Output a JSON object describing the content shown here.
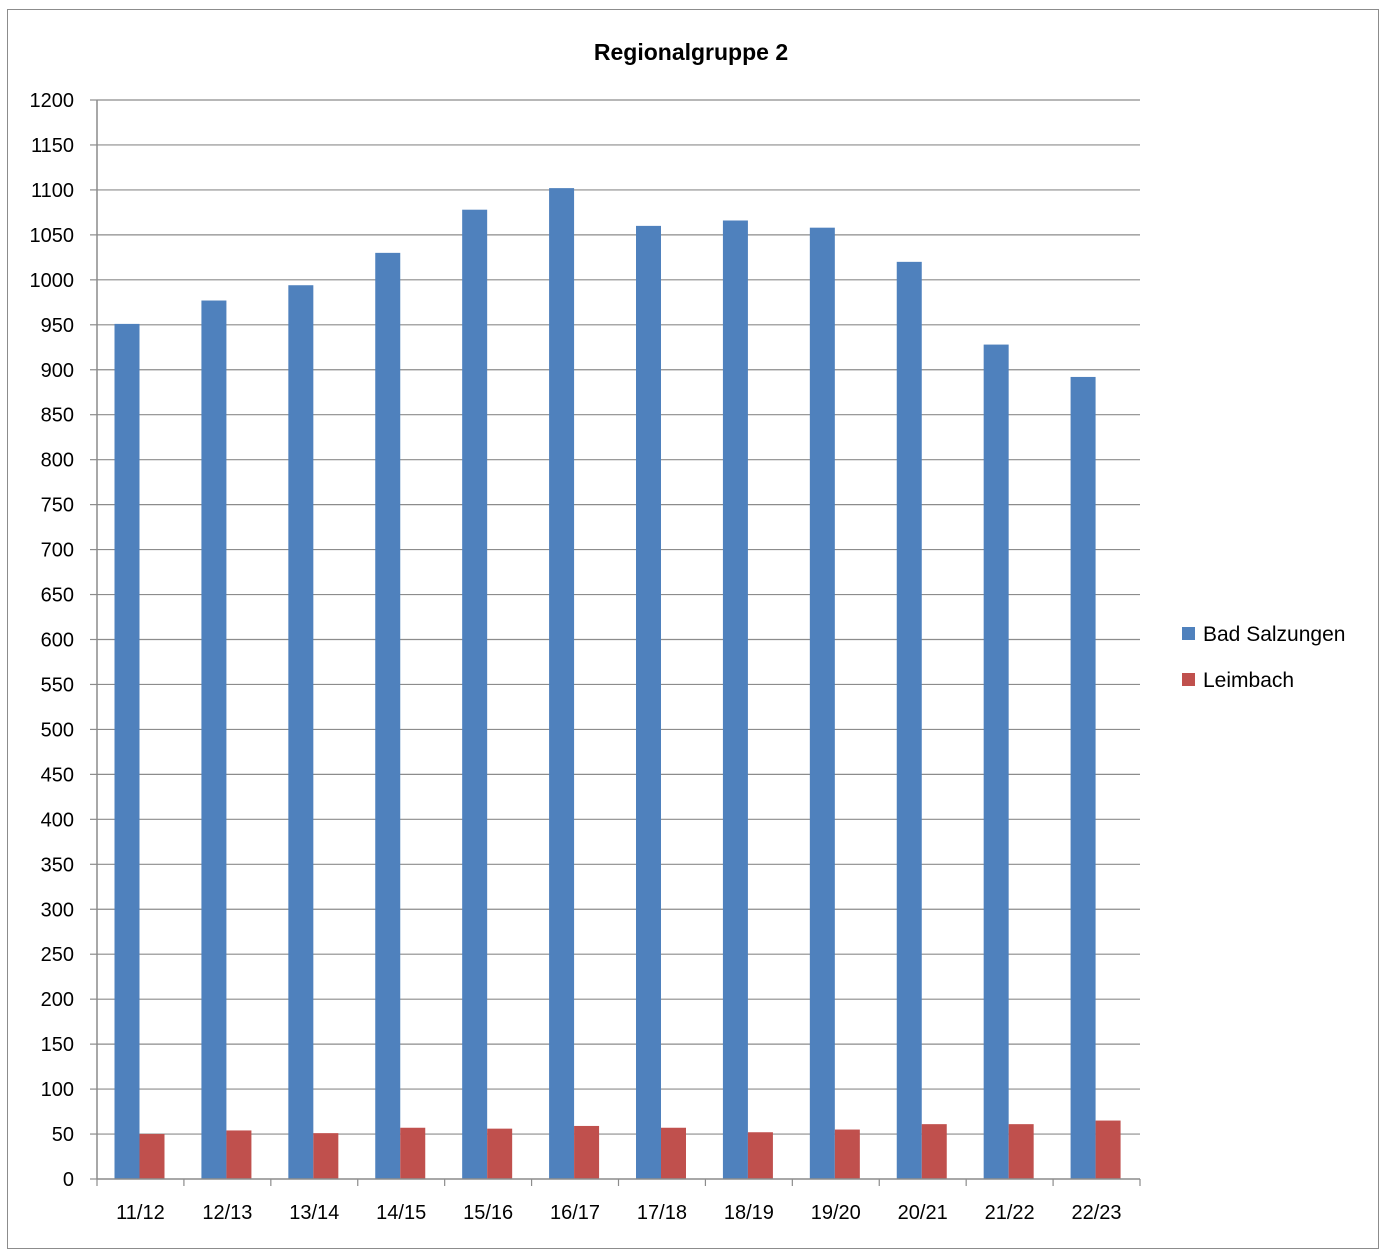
{
  "chart_data": {
    "type": "bar",
    "title": "Regionalgruppe 2",
    "xlabel": "",
    "ylabel": "",
    "ylim": [
      0,
      1200
    ],
    "ytick_step": 50,
    "grid": true,
    "legend_position": "right",
    "categories": [
      "11/12",
      "12/13",
      "13/14",
      "14/15",
      "15/16",
      "16/17",
      "17/18",
      "18/19",
      "19/20",
      "20/21",
      "21/22",
      "22/23"
    ],
    "series": [
      {
        "name": "Bad Salzungen",
        "color": "#4f81bd",
        "values": [
          951,
          977,
          994,
          1030,
          1078,
          1102,
          1060,
          1066,
          1058,
          1020,
          928,
          892
        ]
      },
      {
        "name": "Leimbach",
        "color": "#c0504d",
        "values": [
          50,
          54,
          51,
          57,
          56,
          59,
          57,
          52,
          55,
          61,
          61,
          65
        ]
      }
    ]
  }
}
